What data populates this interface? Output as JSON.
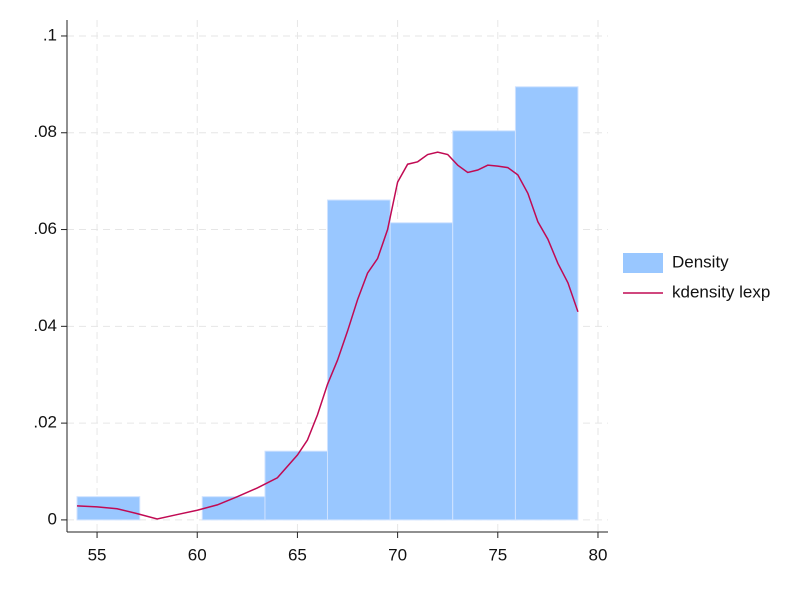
{
  "chart_data": [
    {
      "type": "histogram",
      "name": "Density",
      "color": "#99c7ff",
      "edge_color": "#cfe2ff",
      "bins": [
        54,
        57.13,
        60.25,
        63.38,
        66.5,
        69.63,
        72.75,
        75.88,
        79
      ],
      "values": [
        0.0048,
        0,
        0.0048,
        0.0142,
        0.0661,
        0.0614,
        0.0804,
        0.0895
      ],
      "xlim": [
        53.5,
        80.5
      ],
      "ylim": [
        -0.0025,
        0.1033
      ],
      "xticks": [
        55,
        60,
        65,
        70,
        75,
        80
      ],
      "yticks": [
        0,
        {
          "value": 0.02,
          "label": ".02"
        },
        {
          "value": 0.04,
          "label": ".04"
        },
        {
          "value": 0.06,
          "label": ".06"
        },
        {
          "value": 0.08,
          "label": ".08"
        },
        {
          "value": 0.1,
          "label": ".1"
        }
      ],
      "grid": true,
      "legend": "right"
    },
    {
      "type": "line",
      "name": "kdensity lexp",
      "color": "#c10a53",
      "x": [
        54,
        55,
        56,
        57,
        58,
        59,
        60,
        61,
        62,
        63,
        64,
        65,
        65.5,
        66,
        66.5,
        67,
        67.5,
        68,
        68.5,
        69,
        69.5,
        70,
        70.5,
        71,
        71.5,
        72,
        72.5,
        73,
        73.5,
        74,
        74.5,
        75,
        75.5,
        76,
        76.5,
        77,
        77.5,
        78,
        78.5,
        79
      ],
      "values": [
        0.0029,
        0.0027,
        0.0023,
        0.0013,
        0.0002,
        0.0011,
        0.002,
        0.0031,
        0.0048,
        0.0066,
        0.0087,
        0.0134,
        0.0165,
        0.0217,
        0.028,
        0.033,
        0.039,
        0.0455,
        0.051,
        0.054,
        0.06,
        0.0698,
        0.0735,
        0.074,
        0.0755,
        0.076,
        0.0755,
        0.0733,
        0.0718,
        0.0723,
        0.0733,
        0.0731,
        0.0728,
        0.0713,
        0.0675,
        0.0616,
        0.058,
        0.053,
        0.049,
        0.043
      ]
    }
  ]
}
